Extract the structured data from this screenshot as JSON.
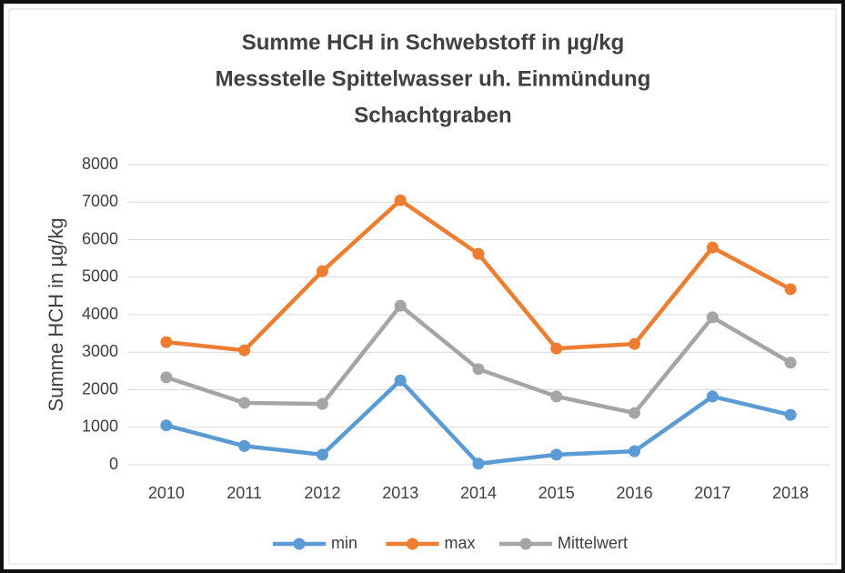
{
  "chart_data": {
    "type": "line",
    "title": [
      "Summe HCH in Schwebstoff in µg/kg",
      "Messstelle Spittelwasser uh. Einmündung",
      "Schachtgraben"
    ],
    "y_label": "Summe HCH in µg/kg",
    "categories": [
      "2010",
      "2011",
      "2012",
      "2013",
      "2014",
      "2015",
      "2016",
      "2017",
      "2018"
    ],
    "series": [
      {
        "name": "min",
        "color": "#5b9bd5",
        "values": [
          1050,
          500,
          270,
          2250,
          30,
          270,
          360,
          1820,
          1330
        ]
      },
      {
        "name": "max",
        "color": "#ed7d31",
        "values": [
          3270,
          3050,
          5160,
          7050,
          5620,
          3100,
          3220,
          5790,
          4680
        ]
      },
      {
        "name": "Mittelwert",
        "color": "#a5a5a5",
        "values": [
          2330,
          1650,
          1620,
          4240,
          2550,
          1820,
          1380,
          3930,
          2720
        ]
      }
    ],
    "ylim": [
      0,
      8000
    ],
    "yticks": [
      0,
      1000,
      2000,
      3000,
      4000,
      5000,
      6000,
      7000,
      8000
    ],
    "grid": true,
    "legend": "bottom"
  }
}
